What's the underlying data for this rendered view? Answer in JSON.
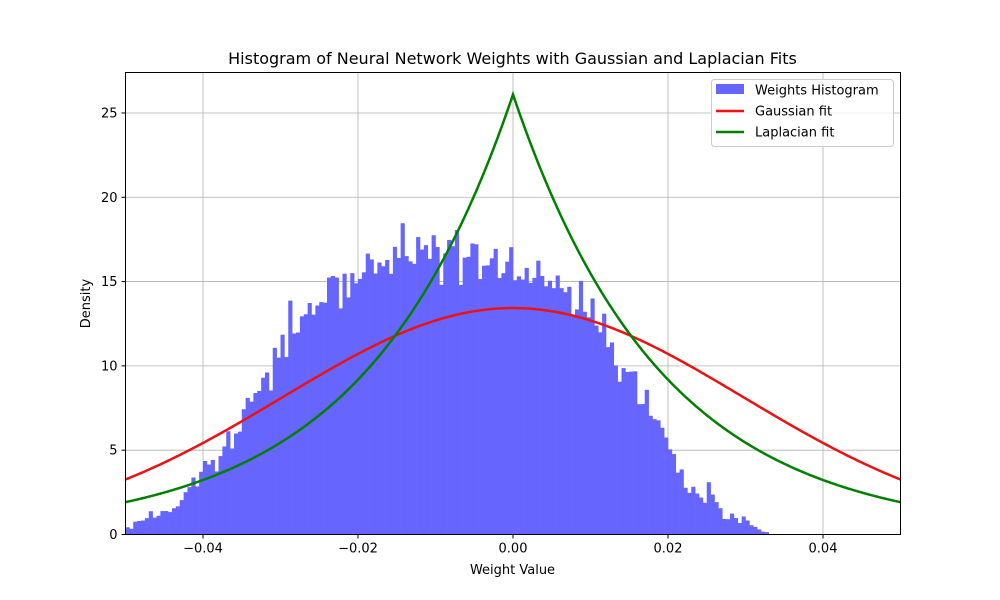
{
  "chart_data": {
    "type": "histogram",
    "title": "Histogram of Neural Network Weights with Gaussian and Laplacian Fits",
    "xlabel": "Weight Value",
    "ylabel": "Density",
    "xlim": [
      -0.05,
      0.05
    ],
    "ylim": [
      0,
      27.4
    ],
    "x_ticks": [
      -0.04,
      -0.02,
      0.0,
      0.02,
      0.04
    ],
    "x_tick_labels": [
      "−0.04",
      "−0.02",
      "0.00",
      "0.02",
      "0.04"
    ],
    "y_ticks": [
      0,
      5,
      10,
      15,
      20,
      25
    ],
    "y_tick_labels": [
      "0",
      "5",
      "10",
      "15",
      "20",
      "25"
    ],
    "grid": true,
    "legend_position": "top-right",
    "histogram": {
      "name": "Weights Histogram",
      "color": "#6666ff",
      "bin_start": -0.05,
      "bin_width": 0.0005,
      "values": [
        0.43,
        0.34,
        0.76,
        0.8,
        0.83,
        0.97,
        1.38,
        1.0,
        1.11,
        1.39,
        1.39,
        1.33,
        1.56,
        1.67,
        2.04,
        2.51,
        2.81,
        3.38,
        2.85,
        3.72,
        4.36,
        4.15,
        4.42,
        3.74,
        4.65,
        5.22,
        6.12,
        5.1,
        5.99,
        6.1,
        7.43,
        8.1,
        7.88,
        8.39,
        8.51,
        9.3,
        9.61,
        8.54,
        11.07,
        10.49,
        11.85,
        10.53,
        13.87,
        11.92,
        11.98,
        12.94,
        13.06,
        13.73,
        13.04,
        13.58,
        13.78,
        13.75,
        15.24,
        15.33,
        15.24,
        13.41,
        15.47,
        14.06,
        15.5,
        14.9,
        15.16,
        15.55,
        16.66,
        16.31,
        15.48,
        16.13,
        15.91,
        16.28,
        15.46,
        17.06,
        16.4,
        18.46,
        16.51,
        16.2,
        16.05,
        17.64,
        16.9,
        17.16,
        16.35,
        17.75,
        17.05,
        14.81,
        16.67,
        17.47,
        17.1,
        18.06,
        14.8,
        16.42,
        16.47,
        17.26,
        17.21,
        15.15,
        15.94,
        15.96,
        16.38,
        16.94,
        15.21,
        15.5,
        16.18,
        17.04,
        15.08,
        15.31,
        15.12,
        15.81,
        14.92,
        15.22,
        16.24,
        15.33,
        14.72,
        15.05,
        14.61,
        15.36,
        14.61,
        14.37,
        14.69,
        13.04,
        13.35,
        15.04,
        13.21,
        12.88,
        14.0,
        12.39,
        11.99,
        13.1,
        11.11,
        11.39,
        10.03,
        9.06,
        9.87,
        9.64,
        9.66,
        9.68,
        7.73,
        7.74,
        8.58,
        7.04,
        6.84,
        6.77,
        6.33,
        5.75,
        5.05,
        4.77,
        3.67,
        3.86,
        2.77,
        2.47,
        2.83,
        2.43,
        2.19,
        1.88,
        3.1,
        2.37,
        1.92,
        1.56,
        0.92,
        0.91,
        1.24,
        0.98,
        0.68,
        1.07,
        0.83,
        0.55,
        0.45,
        0.3,
        0.17,
        0.14
      ]
    },
    "series": [
      {
        "name": "Gaussian fit",
        "color": "#ee1111",
        "kind": "gaussian",
        "mu": 0.0,
        "sigma": 0.02972,
        "peak": 13.43
      },
      {
        "name": "Laplacian fit",
        "color": "#008000",
        "kind": "laplace",
        "mu": 0.0,
        "b": 0.01915,
        "peak": 26.1
      }
    ]
  }
}
